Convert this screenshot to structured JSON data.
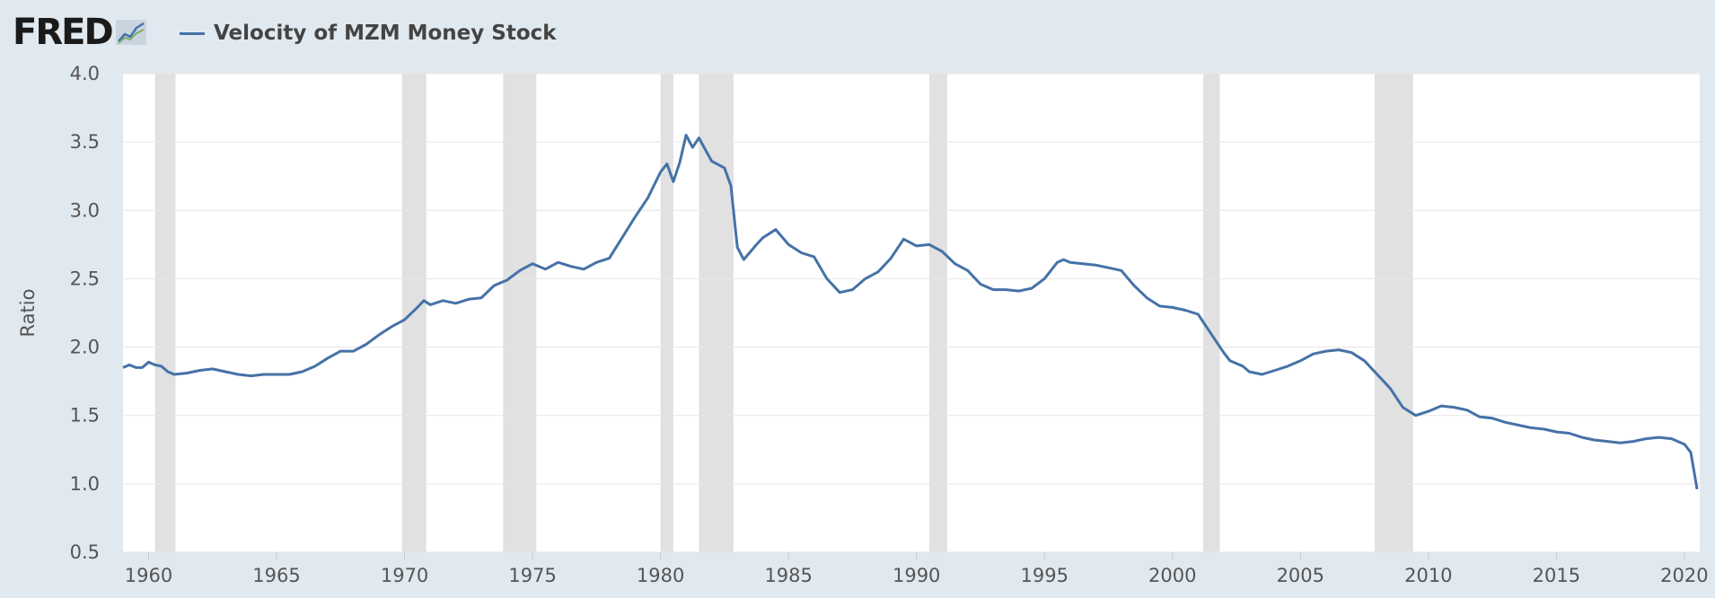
{
  "header": {
    "logo_text": "FRED",
    "logo_icon": "line-chart-icon",
    "legend_label": "Velocity of MZM Money Stock"
  },
  "colors": {
    "background": "#e1e9f0",
    "plot_background": "#ffffff",
    "series": "#4572a7",
    "recession": "#e1e1e1",
    "grid": "#e6e6e6"
  },
  "chart_data": {
    "type": "line",
    "title": "",
    "xlabel": "",
    "ylabel": "Ratio",
    "ylim": [
      0.5,
      4.0
    ],
    "xlim": [
      1959.0,
      2020.6
    ],
    "yticks": [
      "0.5",
      "1.0",
      "1.5",
      "2.0",
      "2.5",
      "3.0",
      "3.5",
      "4.0"
    ],
    "xticks": [
      "1960",
      "1965",
      "1970",
      "1975",
      "1980",
      "1985",
      "1990",
      "1995",
      "2000",
      "2005",
      "2010",
      "2015",
      "2020"
    ],
    "grid": true,
    "legend": "top-left",
    "recessions": [
      [
        1960.25,
        1961.05
      ],
      [
        1969.9,
        1970.85
      ],
      [
        1973.85,
        1975.15
      ],
      [
        1980.0,
        1980.5
      ],
      [
        1981.5,
        1982.85
      ],
      [
        1990.5,
        1991.2
      ],
      [
        2001.2,
        2001.85
      ],
      [
        2007.9,
        2009.4
      ]
    ],
    "series": [
      {
        "name": "Velocity of MZM Money Stock",
        "points": [
          [
            1959.0,
            1.85
          ],
          [
            1959.25,
            1.87
          ],
          [
            1959.5,
            1.85
          ],
          [
            1959.75,
            1.85
          ],
          [
            1960.0,
            1.89
          ],
          [
            1960.25,
            1.87
          ],
          [
            1960.5,
            1.86
          ],
          [
            1960.75,
            1.82
          ],
          [
            1961.0,
            1.8
          ],
          [
            1961.5,
            1.81
          ],
          [
            1962.0,
            1.83
          ],
          [
            1962.5,
            1.84
          ],
          [
            1963.0,
            1.82
          ],
          [
            1963.5,
            1.8
          ],
          [
            1964.0,
            1.79
          ],
          [
            1964.5,
            1.8
          ],
          [
            1965.0,
            1.8
          ],
          [
            1965.5,
            1.8
          ],
          [
            1966.0,
            1.82
          ],
          [
            1966.5,
            1.86
          ],
          [
            1967.0,
            1.92
          ],
          [
            1967.5,
            1.97
          ],
          [
            1968.0,
            1.97
          ],
          [
            1968.5,
            2.02
          ],
          [
            1969.0,
            2.09
          ],
          [
            1969.5,
            2.15
          ],
          [
            1970.0,
            2.2
          ],
          [
            1970.5,
            2.29
          ],
          [
            1970.75,
            2.34
          ],
          [
            1971.0,
            2.31
          ],
          [
            1971.5,
            2.34
          ],
          [
            1972.0,
            2.32
          ],
          [
            1972.5,
            2.35
          ],
          [
            1973.0,
            2.36
          ],
          [
            1973.5,
            2.45
          ],
          [
            1974.0,
            2.49
          ],
          [
            1974.5,
            2.56
          ],
          [
            1975.0,
            2.61
          ],
          [
            1975.5,
            2.57
          ],
          [
            1976.0,
            2.62
          ],
          [
            1976.5,
            2.59
          ],
          [
            1977.0,
            2.57
          ],
          [
            1977.5,
            2.62
          ],
          [
            1978.0,
            2.65
          ],
          [
            1978.5,
            2.8
          ],
          [
            1979.0,
            2.95
          ],
          [
            1979.5,
            3.09
          ],
          [
            1980.0,
            3.28
          ],
          [
            1980.25,
            3.34
          ],
          [
            1980.5,
            3.21
          ],
          [
            1980.75,
            3.35
          ],
          [
            1981.0,
            3.55
          ],
          [
            1981.25,
            3.46
          ],
          [
            1981.5,
            3.53
          ],
          [
            1982.0,
            3.36
          ],
          [
            1982.5,
            3.31
          ],
          [
            1982.75,
            3.18
          ],
          [
            1983.0,
            2.73
          ],
          [
            1983.25,
            2.64
          ],
          [
            1983.75,
            2.75
          ],
          [
            1984.0,
            2.8
          ],
          [
            1984.5,
            2.86
          ],
          [
            1985.0,
            2.75
          ],
          [
            1985.5,
            2.69
          ],
          [
            1986.0,
            2.66
          ],
          [
            1986.5,
            2.5
          ],
          [
            1987.0,
            2.4
          ],
          [
            1987.5,
            2.42
          ],
          [
            1988.0,
            2.5
          ],
          [
            1988.5,
            2.55
          ],
          [
            1989.0,
            2.65
          ],
          [
            1989.5,
            2.79
          ],
          [
            1990.0,
            2.74
          ],
          [
            1990.5,
            2.75
          ],
          [
            1991.0,
            2.7
          ],
          [
            1991.5,
            2.61
          ],
          [
            1992.0,
            2.56
          ],
          [
            1992.5,
            2.46
          ],
          [
            1993.0,
            2.42
          ],
          [
            1993.5,
            2.42
          ],
          [
            1994.0,
            2.41
          ],
          [
            1994.5,
            2.43
          ],
          [
            1995.0,
            2.5
          ],
          [
            1995.5,
            2.62
          ],
          [
            1995.75,
            2.64
          ],
          [
            1996.0,
            2.62
          ],
          [
            1996.5,
            2.61
          ],
          [
            1997.0,
            2.6
          ],
          [
            1997.5,
            2.58
          ],
          [
            1998.0,
            2.56
          ],
          [
            1998.5,
            2.45
          ],
          [
            1999.0,
            2.36
          ],
          [
            1999.5,
            2.3
          ],
          [
            2000.0,
            2.29
          ],
          [
            2000.5,
            2.27
          ],
          [
            2001.0,
            2.24
          ],
          [
            2001.5,
            2.1
          ],
          [
            2002.0,
            1.96
          ],
          [
            2002.25,
            1.9
          ],
          [
            2002.75,
            1.86
          ],
          [
            2003.0,
            1.82
          ],
          [
            2003.5,
            1.8
          ],
          [
            2004.0,
            1.83
          ],
          [
            2004.5,
            1.86
          ],
          [
            2005.0,
            1.9
          ],
          [
            2005.5,
            1.95
          ],
          [
            2006.0,
            1.97
          ],
          [
            2006.5,
            1.98
          ],
          [
            2007.0,
            1.96
          ],
          [
            2007.5,
            1.9
          ],
          [
            2008.0,
            1.8
          ],
          [
            2008.5,
            1.7
          ],
          [
            2009.0,
            1.56
          ],
          [
            2009.5,
            1.5
          ],
          [
            2010.0,
            1.53
          ],
          [
            2010.5,
            1.57
          ],
          [
            2011.0,
            1.56
          ],
          [
            2011.5,
            1.54
          ],
          [
            2012.0,
            1.49
          ],
          [
            2012.5,
            1.48
          ],
          [
            2013.0,
            1.45
          ],
          [
            2013.5,
            1.43
          ],
          [
            2014.0,
            1.41
          ],
          [
            2014.5,
            1.4
          ],
          [
            2015.0,
            1.38
          ],
          [
            2015.5,
            1.37
          ],
          [
            2016.0,
            1.34
          ],
          [
            2016.5,
            1.32
          ],
          [
            2017.0,
            1.31
          ],
          [
            2017.5,
            1.3
          ],
          [
            2018.0,
            1.31
          ],
          [
            2018.5,
            1.33
          ],
          [
            2019.0,
            1.34
          ],
          [
            2019.5,
            1.33
          ],
          [
            2020.0,
            1.29
          ],
          [
            2020.25,
            1.23
          ],
          [
            2020.5,
            0.96
          ]
        ]
      }
    ]
  }
}
